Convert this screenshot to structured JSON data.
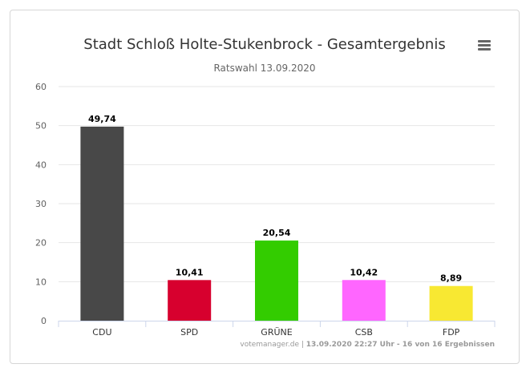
{
  "chart_data": {
    "type": "bar",
    "title": "Stadt Schloß Holte-Stukenbrock - Gesamtergebnis",
    "subtitle": "Ratswahl 13.09.2020",
    "categories": [
      "CDU",
      "SPD",
      "GRÜNE",
      "CSB",
      "FDP"
    ],
    "values": [
      49.74,
      10.41,
      20.54,
      10.42,
      8.89
    ],
    "value_labels": [
      "49,74",
      "10,41",
      "20,54",
      "10,42",
      "8,89"
    ],
    "colors": [
      "#484848",
      "#d7002e",
      "#33cc00",
      "#ff66ff",
      "#f8e832"
    ],
    "ylim": [
      0,
      60
    ],
    "yticks": [
      0,
      10,
      20,
      30,
      40,
      50,
      60
    ],
    "grid": true,
    "legend": "none"
  },
  "credits": {
    "source": "votemanager.de",
    "detail": "13.09.2020 22:27 Uhr - 16 von 16 Ergebnissen"
  },
  "menu": {
    "icon": "hamburger-menu-icon"
  }
}
